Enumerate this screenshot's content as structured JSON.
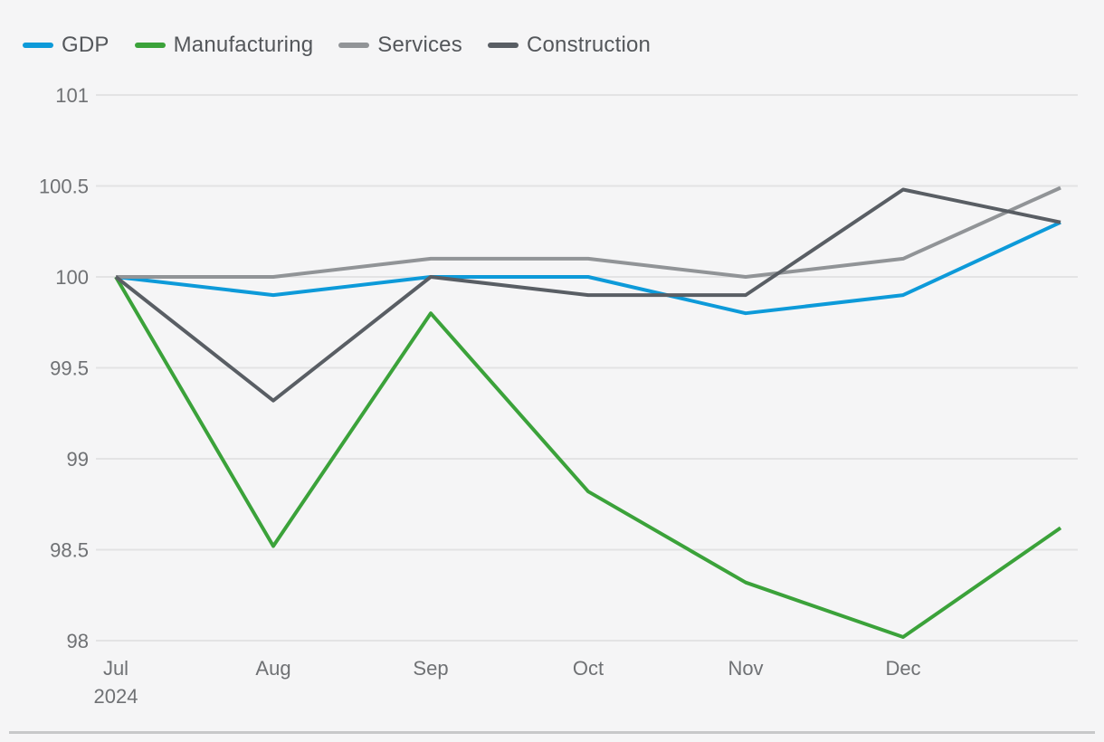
{
  "colors": {
    "background": "#f5f5f6",
    "gridline": "#e3e3e4",
    "axis_text": "#6f7174",
    "legend_text": "#54575b",
    "divider": "#c7c8c9"
  },
  "chart_data": {
    "type": "line",
    "title": "",
    "categories": [
      "Jul",
      "Aug",
      "Sep",
      "Oct",
      "Nov",
      "Dec",
      ""
    ],
    "first_tick_sublabel": "2024",
    "series": [
      {
        "name": "GDP",
        "color": "#0d9ad9",
        "values": [
          100,
          99.9,
          100,
          100,
          99.8,
          99.9,
          100.3
        ]
      },
      {
        "name": "Manufacturing",
        "color": "#3ba23a",
        "values": [
          100,
          98.52,
          99.8,
          98.82,
          98.32,
          98.02,
          98.62
        ]
      },
      {
        "name": "Services",
        "color": "#919497",
        "values": [
          100,
          100,
          100.1,
          100.1,
          100,
          100.1,
          100.49
        ]
      },
      {
        "name": "Construction",
        "color": "#595e64",
        "values": [
          100,
          99.32,
          100,
          99.9,
          99.9,
          100.48,
          100.3
        ]
      }
    ],
    "y_ticks": [
      101,
      100.5,
      100,
      99.5,
      99,
      98.5,
      98
    ],
    "ylim": [
      98,
      101
    ],
    "grid": true,
    "legend_position": "top-left"
  }
}
